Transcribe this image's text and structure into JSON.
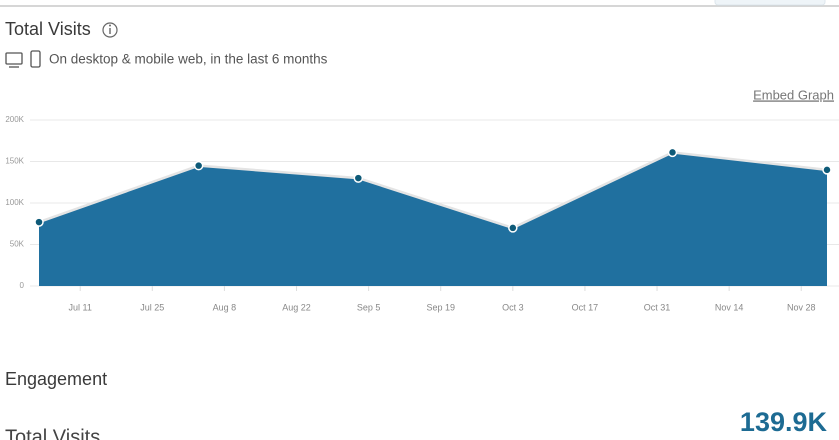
{
  "header": {
    "title": "Total Visits",
    "subtitle": "On desktop & mobile web, in the last 6 months"
  },
  "embed_link": "Embed Graph",
  "chart_data": {
    "type": "area",
    "x": [
      "Jul 3",
      "Aug 3",
      "Sep 3",
      "Oct 3",
      "Nov 3",
      "Dec 3"
    ],
    "values": [
      77000,
      145000,
      130000,
      70000,
      161000,
      139900
    ],
    "color": "#20709f",
    "xlim": [
      "Jul 3",
      "Dec 3"
    ],
    "xticks": [
      "Jul 11",
      "Jul 25",
      "Aug 8",
      "Aug 22",
      "Sep 5",
      "Sep 19",
      "Oct 3",
      "Oct 17",
      "Oct 31",
      "Nov 14",
      "Nov 28"
    ],
    "ylim": [
      0,
      200000
    ],
    "yticks": [
      0,
      {
        "value": 50000,
        "label": "50K"
      },
      {
        "value": 100000,
        "label": "100K"
      },
      {
        "value": 150000,
        "label": "150K"
      },
      {
        "value": 200000,
        "label": "200K"
      }
    ],
    "grid": true
  },
  "engagement": {
    "title": "Engagement",
    "metric_label": "Total Visits",
    "metric_value": "139.9K"
  }
}
